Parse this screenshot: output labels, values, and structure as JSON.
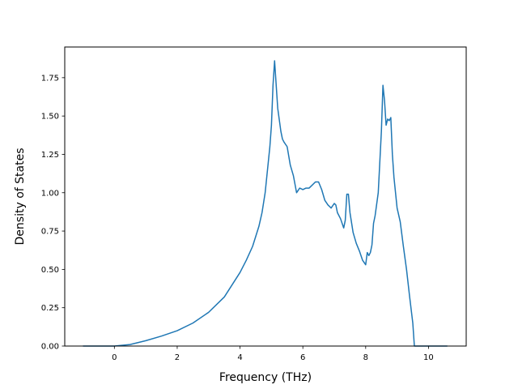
{
  "chart_data": {
    "type": "line",
    "title": "",
    "xlabel": "Frequency (THz)",
    "ylabel": "Density of States",
    "xlim": [
      -1.58,
      11.2
    ],
    "ylim": [
      0.0,
      1.95
    ],
    "x_ticks": [
      0,
      2,
      4,
      6,
      8,
      10
    ],
    "x_tick_labels": [
      "0",
      "2",
      "4",
      "6",
      "8",
      "10"
    ],
    "y_ticks": [
      0.0,
      0.25,
      0.5,
      0.75,
      1.0,
      1.25,
      1.5,
      1.75
    ],
    "y_tick_labels": [
      "0.00",
      "0.25",
      "0.50",
      "0.75",
      "1.00",
      "1.25",
      "1.50",
      "1.75"
    ],
    "grid": false,
    "line_color": "#1f77b4",
    "series": [
      {
        "x": [
          -1.0,
          -0.5,
          0.0,
          0.5,
          1.0,
          1.5,
          2.0,
          2.5,
          3.0,
          3.5,
          4.0,
          4.2,
          4.4,
          4.6,
          4.7,
          4.8,
          4.85,
          4.9,
          4.95,
          5.0,
          5.05,
          5.1,
          5.2,
          5.3,
          5.35,
          5.4,
          5.5,
          5.6,
          5.7,
          5.8,
          5.9,
          6.0,
          6.1,
          6.2,
          6.3,
          6.4,
          6.5,
          6.6,
          6.7,
          6.8,
          6.9,
          7.0,
          7.05,
          7.1,
          7.2,
          7.3,
          7.35,
          7.4,
          7.45,
          7.5,
          7.6,
          7.7,
          7.8,
          7.9,
          8.0,
          8.05,
          8.1,
          8.15,
          8.2,
          8.25,
          8.3,
          8.4,
          8.5,
          8.55,
          8.6,
          8.65,
          8.7,
          8.75,
          8.8,
          8.85,
          8.9,
          8.95,
          9.0,
          9.1,
          9.2,
          9.3,
          9.4,
          9.5,
          9.55,
          9.6,
          9.65,
          9.7,
          10.0,
          10.5,
          10.6
        ],
        "y": [
          0.0,
          0.0,
          0.0,
          0.01,
          0.035,
          0.065,
          0.1,
          0.15,
          0.22,
          0.32,
          0.48,
          0.56,
          0.65,
          0.78,
          0.87,
          1.0,
          1.1,
          1.2,
          1.3,
          1.44,
          1.7,
          1.86,
          1.55,
          1.4,
          1.35,
          1.33,
          1.3,
          1.18,
          1.11,
          1.0,
          1.03,
          1.02,
          1.03,
          1.03,
          1.05,
          1.07,
          1.07,
          1.02,
          0.95,
          0.92,
          0.9,
          0.93,
          0.92,
          0.87,
          0.83,
          0.77,
          0.82,
          0.99,
          0.99,
          0.87,
          0.74,
          0.67,
          0.62,
          0.56,
          0.53,
          0.61,
          0.59,
          0.61,
          0.66,
          0.8,
          0.85,
          1.0,
          1.4,
          1.7,
          1.6,
          1.44,
          1.48,
          1.47,
          1.49,
          1.25,
          1.1,
          1.0,
          0.9,
          0.81,
          0.65,
          0.5,
          0.32,
          0.15,
          0.0,
          0.0,
          0.0,
          0.0,
          0.0,
          0.0,
          0.0
        ]
      }
    ]
  }
}
